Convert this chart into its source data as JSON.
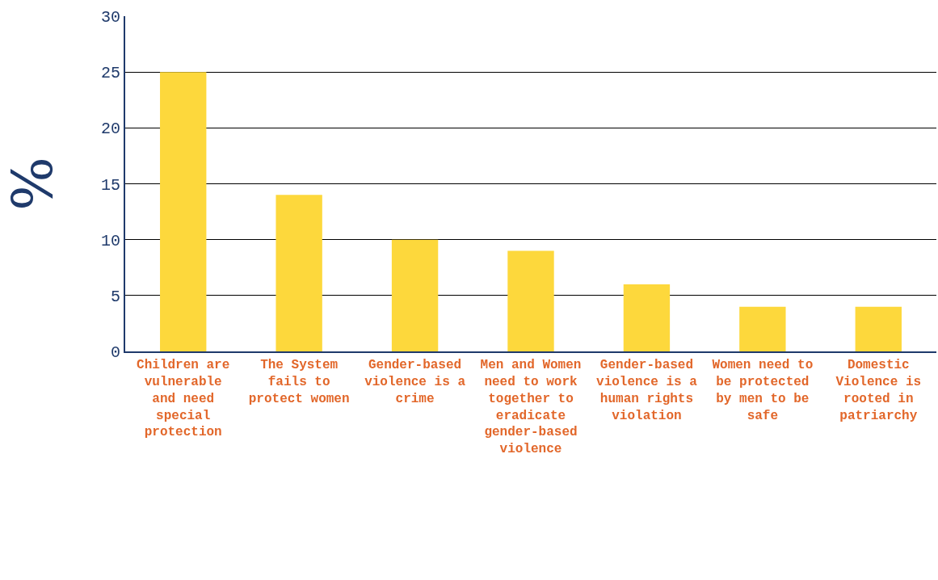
{
  "chart_data": {
    "type": "bar",
    "ylabel": "%",
    "categories": [
      "Children are vulnerable and need special protection",
      "The System fails to protect women",
      "Gender-based violence is a crime",
      "Men and Women need to work together to eradicate gender-based violence",
      "Gender-based violence is a human rights violation",
      "Women need to be protected by men to be safe",
      "Domestic Violence is rooted in patriarchy"
    ],
    "values": [
      25,
      14,
      10,
      9,
      6,
      4,
      4
    ],
    "color": "#fdd83c",
    "ylim": [
      0,
      30
    ],
    "yticks": [
      0,
      5,
      10,
      15,
      20,
      25,
      30
    ],
    "grid": "y"
  }
}
